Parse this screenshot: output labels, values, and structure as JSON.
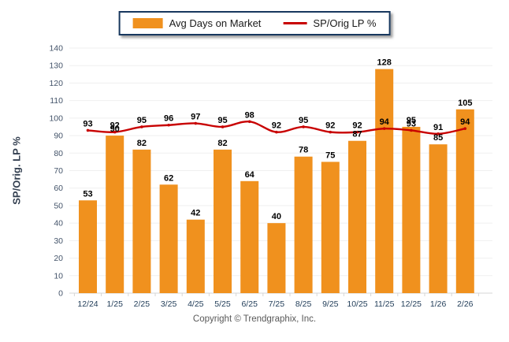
{
  "legend": {
    "items": [
      {
        "label": "Avg Days on Market",
        "type": "bar",
        "color": "#F0911E"
      },
      {
        "label": "SP/Orig LP %",
        "type": "line",
        "color": "#C80000"
      }
    ]
  },
  "copyright": "Copyright © Trendgraphix, Inc.",
  "chart_data": {
    "type": "bar",
    "subtype": "bar+line-combo",
    "categories": [
      "12/24",
      "1/25",
      "2/25",
      "3/25",
      "4/25",
      "5/25",
      "6/25",
      "7/25",
      "8/25",
      "9/25",
      "10/25",
      "11/25",
      "12/25",
      "1/26",
      "2/26"
    ],
    "series": [
      {
        "name": "Avg Days on Market",
        "type": "bar",
        "color": "#F0911E",
        "values": [
          53,
          90,
          82,
          62,
          42,
          82,
          64,
          40,
          78,
          75,
          87,
          128,
          95,
          85,
          105
        ]
      },
      {
        "name": "SP/Orig LP %",
        "type": "line",
        "color": "#C80000",
        "values": [
          93,
          92,
          95,
          96,
          97,
          95,
          98,
          92,
          95,
          92,
          92,
          94,
          93,
          91,
          94
        ]
      }
    ],
    "title": "",
    "xlabel": "",
    "ylabel": "SP/Orig. LP %",
    "ylim": [
      0,
      140
    ],
    "ytick_step": 10,
    "grid": true,
    "legend_position": "top",
    "value_labels": true
  },
  "colors": {
    "grid": "#EFEFEF",
    "axis_line": "#D6D6D6",
    "tick_label": "#44546A",
    "x_label": "#1F3B57",
    "value_label": "#000000",
    "legend_border": "#17375E"
  }
}
